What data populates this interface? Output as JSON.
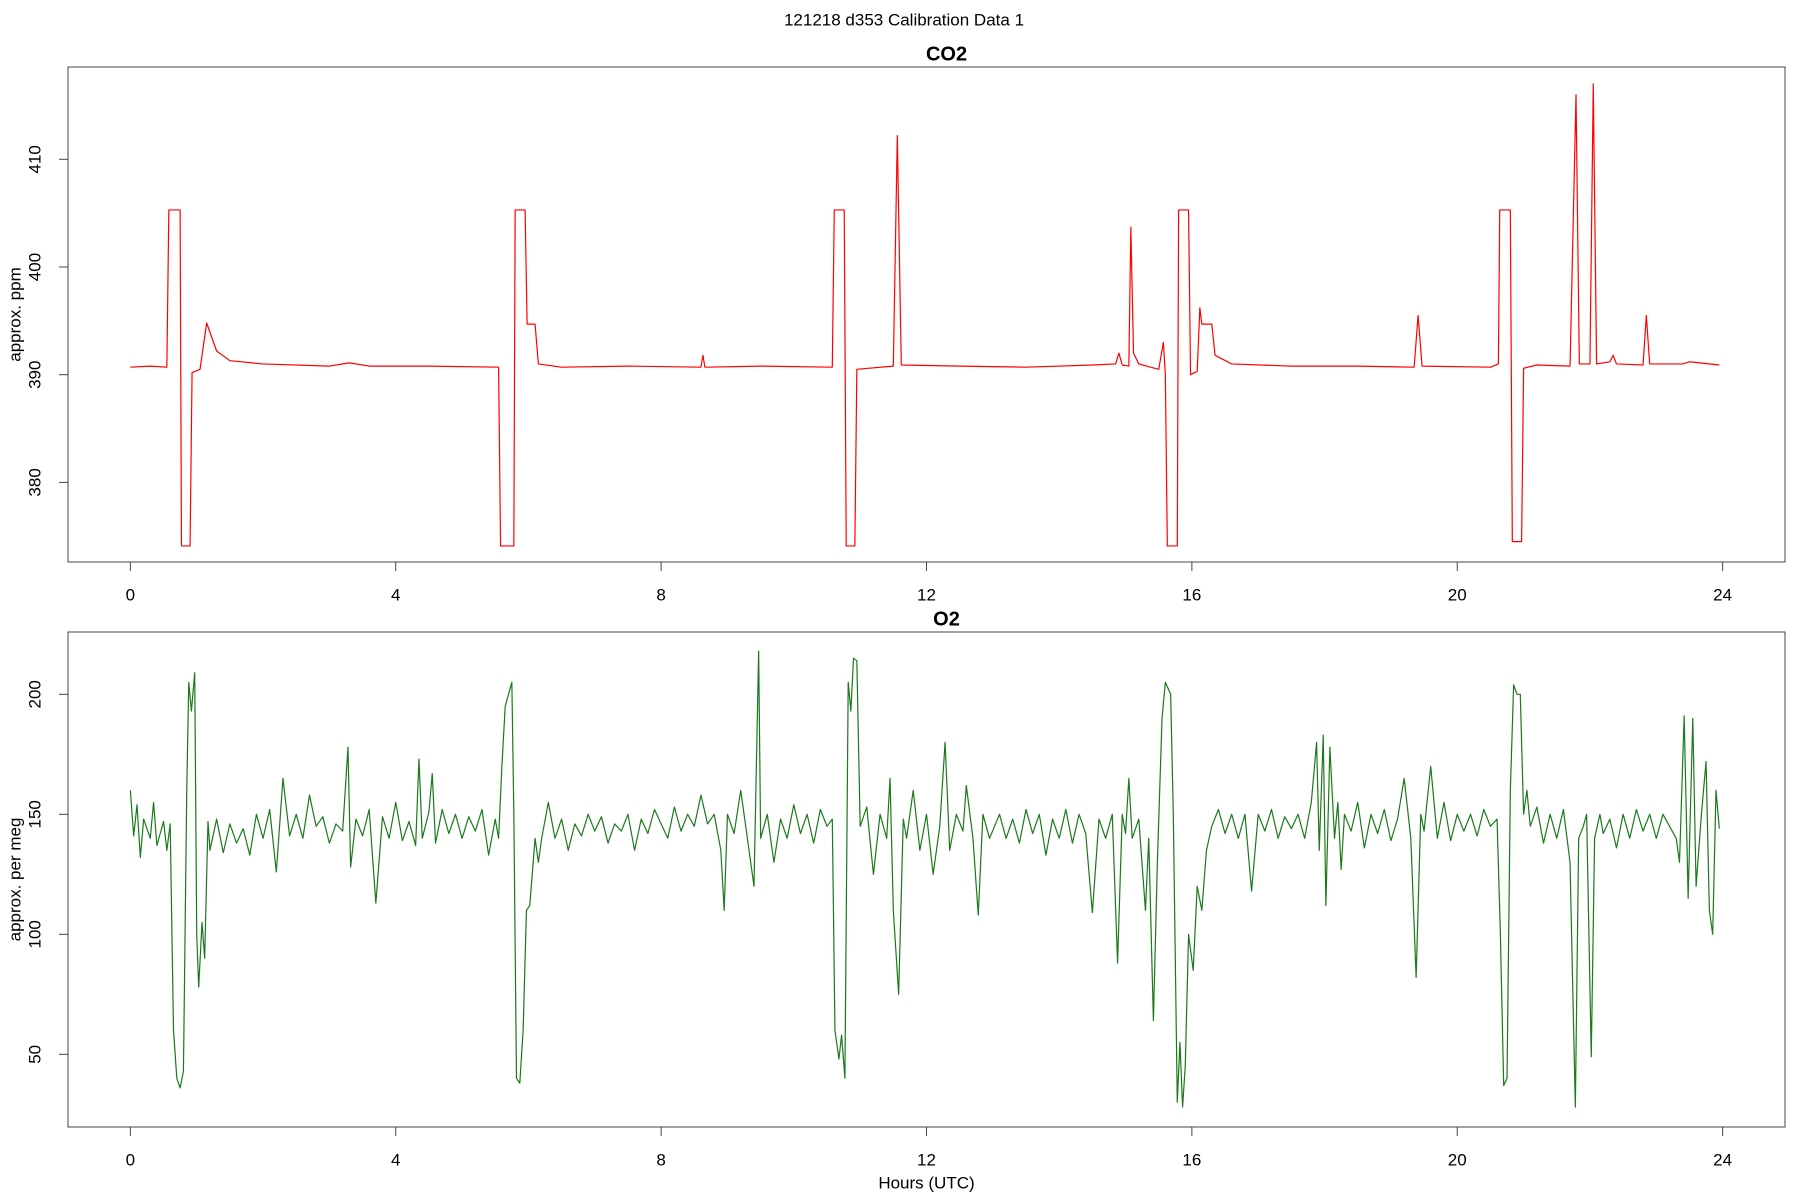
{
  "title": "121218   d353   Calibration Data 1",
  "chart_data": [
    {
      "type": "line",
      "title": "CO2",
      "y_label": "approx. ppm",
      "color": "#ff0000",
      "xlim": [
        -0.94,
        24.94
      ],
      "xticks": [
        0,
        4,
        8,
        12,
        16,
        20,
        24
      ],
      "ylim": [
        372.61,
        418.57
      ],
      "yticks": [
        380,
        390,
        400,
        410
      ],
      "x": [
        0,
        0.3,
        0.55,
        0.58,
        0.75,
        0.77,
        0.9,
        0.93,
        1.05,
        1.15,
        1.3,
        1.5,
        2,
        3,
        3.3,
        3.6,
        4.5,
        5.55,
        5.58,
        5.78,
        5.8,
        5.95,
        5.98,
        6.1,
        6.15,
        6.5,
        7.5,
        8.6,
        8.63,
        8.66,
        9.5,
        10.58,
        10.61,
        10.76,
        10.79,
        10.92,
        10.95,
        11.5,
        11.56,
        11.62,
        12.5,
        13.5,
        14.5,
        14.85,
        14.9,
        14.95,
        15.05,
        15.08,
        15.12,
        15.2,
        15.5,
        15.57,
        15.6,
        15.63,
        15.78,
        15.8,
        15.95,
        15.98,
        16.08,
        16.12,
        16.15,
        16.3,
        16.35,
        16.6,
        17.5,
        18.5,
        19.35,
        19.41,
        19.47,
        20.5,
        20.62,
        20.64,
        20.8,
        20.83,
        20.97,
        21.0,
        21.2,
        21.7,
        21.79,
        21.84,
        22.0,
        22.05,
        22.1,
        22.3,
        22.35,
        22.4,
        22.8,
        22.85,
        22.9,
        23.4,
        23.5,
        23.95
      ],
      "values": [
        390.7,
        390.8,
        390.7,
        405.3,
        405.3,
        374.1,
        374.1,
        390.2,
        390.5,
        394.8,
        392.2,
        391.3,
        391,
        390.8,
        391.1,
        390.8,
        390.8,
        390.7,
        374.1,
        374.1,
        405.3,
        405.3,
        394.7,
        394.7,
        391,
        390.7,
        390.8,
        390.7,
        391.8,
        390.7,
        390.8,
        390.7,
        405.3,
        405.3,
        374.1,
        374.1,
        390.5,
        390.8,
        412.2,
        390.9,
        390.8,
        390.7,
        390.9,
        391,
        392,
        390.9,
        390.8,
        403.7,
        392,
        391,
        390.5,
        393,
        390,
        374.1,
        374.1,
        405.3,
        405.3,
        390,
        390.3,
        396.2,
        394.7,
        394.7,
        391.8,
        391,
        390.8,
        390.8,
        390.7,
        395.5,
        390.8,
        390.7,
        391,
        405.3,
        405.3,
        374.5,
        374.5,
        390.6,
        390.9,
        390.8,
        416,
        391,
        391,
        417,
        391,
        391.2,
        391.8,
        391,
        390.9,
        395.5,
        391,
        391,
        391.2,
        390.9
      ]
    },
    {
      "type": "line",
      "title": "O2",
      "y_label": "approx. per meg",
      "x_label": "Hours (UTC)",
      "color": "#1a7a1a",
      "xlim": [
        -0.94,
        24.94
      ],
      "xticks": [
        0,
        4,
        8,
        12,
        16,
        20,
        24
      ],
      "ylim": [
        19.71,
        225.96
      ],
      "yticks": [
        50,
        100,
        150,
        200
      ],
      "x": [
        0,
        0.05,
        0.1,
        0.15,
        0.2,
        0.3,
        0.35,
        0.4,
        0.5,
        0.55,
        0.6,
        0.65,
        0.7,
        0.75,
        0.8,
        0.85,
        0.88,
        0.92,
        0.97,
        1.0,
        1.03,
        1.08,
        1.12,
        1.17,
        1.2,
        1.3,
        1.4,
        1.5,
        1.6,
        1.7,
        1.8,
        1.9,
        2,
        2.1,
        2.2,
        2.3,
        2.4,
        2.5,
        2.6,
        2.7,
        2.8,
        2.9,
        3,
        3.1,
        3.2,
        3.28,
        3.32,
        3.4,
        3.5,
        3.6,
        3.7,
        3.8,
        3.9,
        4,
        4.1,
        4.2,
        4.3,
        4.35,
        4.4,
        4.5,
        4.55,
        4.6,
        4.7,
        4.8,
        4.9,
        5,
        5.1,
        5.2,
        5.3,
        5.4,
        5.5,
        5.55,
        5.6,
        5.65,
        5.7,
        5.75,
        5.78,
        5.82,
        5.87,
        5.92,
        5.97,
        6.02,
        6.1,
        6.15,
        6.2,
        6.3,
        6.4,
        6.5,
        6.6,
        6.7,
        6.8,
        6.9,
        7,
        7.1,
        7.2,
        7.3,
        7.4,
        7.5,
        7.6,
        7.7,
        7.8,
        7.9,
        8,
        8.1,
        8.2,
        8.3,
        8.4,
        8.5,
        8.6,
        8.7,
        8.8,
        8.9,
        8.95,
        9,
        9.1,
        9.2,
        9.3,
        9.4,
        9.47,
        9.5,
        9.6,
        9.7,
        9.8,
        9.9,
        10,
        10.1,
        10.2,
        10.3,
        10.4,
        10.5,
        10.58,
        10.62,
        10.68,
        10.72,
        10.77,
        10.82,
        10.86,
        10.9,
        10.95,
        11,
        11.1,
        11.2,
        11.3,
        11.4,
        11.45,
        11.5,
        11.58,
        11.65,
        11.7,
        11.8,
        11.9,
        12,
        12.1,
        12.2,
        12.28,
        12.35,
        12.45,
        12.55,
        12.6,
        12.7,
        12.78,
        12.85,
        12.95,
        13.1,
        13.2,
        13.3,
        13.4,
        13.5,
        13.6,
        13.7,
        13.8,
        13.9,
        14,
        14.1,
        14.2,
        14.3,
        14.4,
        14.5,
        14.6,
        14.7,
        14.8,
        14.88,
        14.95,
        15,
        15.05,
        15.1,
        15.2,
        15.3,
        15.35,
        15.42,
        15.48,
        15.55,
        15.6,
        15.68,
        15.72,
        15.78,
        15.82,
        15.86,
        15.9,
        15.95,
        16.02,
        16.08,
        16.15,
        16.22,
        16.3,
        16.4,
        16.5,
        16.6,
        16.7,
        16.8,
        16.9,
        17,
        17.1,
        17.2,
        17.3,
        17.4,
        17.5,
        17.6,
        17.7,
        17.8,
        17.88,
        17.92,
        17.98,
        18.02,
        18.08,
        18.15,
        18.2,
        18.25,
        18.3,
        18.4,
        18.5,
        18.6,
        18.7,
        18.8,
        18.9,
        19,
        19.1,
        19.2,
        19.3,
        19.38,
        19.45,
        19.5,
        19.6,
        19.7,
        19.8,
        19.9,
        20,
        20.1,
        20.2,
        20.3,
        20.4,
        20.5,
        20.6,
        20.65,
        20.7,
        20.75,
        20.8,
        20.85,
        20.9,
        20.95,
        21,
        21.05,
        21.1,
        21.2,
        21.3,
        21.4,
        21.5,
        21.6,
        21.7,
        21.78,
        21.83,
        21.9,
        21.95,
        22.02,
        22.07,
        22.15,
        22.2,
        22.3,
        22.4,
        22.5,
        22.6,
        22.7,
        22.8,
        22.9,
        23,
        23.1,
        23.2,
        23.3,
        23.35,
        23.42,
        23.48,
        23.55,
        23.6,
        23.68,
        23.75,
        23.8,
        23.85,
        23.9,
        23.95
      ],
      "values": [
        160,
        141,
        154,
        132,
        148,
        140,
        155,
        137,
        147,
        135,
        146,
        60,
        40,
        36,
        43,
        160,
        205,
        193,
        209,
        100,
        78,
        105,
        90,
        147,
        135,
        148,
        134,
        146,
        138,
        144,
        133,
        150,
        140,
        152,
        126,
        165,
        141,
        150,
        140,
        158,
        145,
        149,
        138,
        146,
        143,
        178,
        128,
        148,
        141,
        152,
        113,
        149,
        140,
        155,
        139,
        147,
        137,
        173,
        140,
        151,
        167,
        138,
        152,
        142,
        150,
        140,
        149,
        143,
        152,
        133,
        148,
        140,
        170,
        195,
        200,
        205,
        150,
        40,
        38,
        60,
        110,
        112,
        140,
        130,
        140,
        155,
        140,
        148,
        135,
        146,
        141,
        150,
        143,
        149,
        138,
        146,
        143,
        150,
        135,
        148,
        142,
        152,
        146,
        140,
        153,
        143,
        150,
        145,
        158,
        146,
        150,
        135,
        110,
        150,
        142,
        160,
        140,
        120,
        218,
        140,
        150,
        130,
        148,
        140,
        154,
        142,
        150,
        138,
        152,
        145,
        148,
        60,
        48,
        58,
        40,
        205,
        193,
        215,
        214,
        145,
        153,
        125,
        150,
        140,
        165,
        110,
        75,
        148,
        140,
        160,
        135,
        150,
        125,
        145,
        180,
        135,
        150,
        143,
        162,
        140,
        108,
        150,
        140,
        150,
        140,
        148,
        138,
        152,
        142,
        150,
        133,
        148,
        140,
        152,
        138,
        150,
        142,
        109,
        148,
        140,
        150,
        88,
        150,
        142,
        165,
        140,
        148,
        110,
        140,
        64,
        130,
        190,
        205,
        200,
        150,
        30,
        55,
        28,
        45,
        100,
        85,
        120,
        110,
        135,
        145,
        152,
        142,
        150,
        140,
        150,
        118,
        150,
        143,
        152,
        140,
        149,
        144,
        150,
        140,
        155,
        180,
        135,
        183,
        112,
        178,
        140,
        155,
        127,
        150,
        143,
        155,
        136,
        150,
        142,
        152,
        139,
        148,
        165,
        140,
        82,
        150,
        143,
        170,
        140,
        155,
        139,
        150,
        143,
        150,
        141,
        152,
        145,
        148,
        100,
        37,
        40,
        160,
        204,
        200,
        200,
        150,
        160,
        145,
        153,
        138,
        150,
        140,
        152,
        130,
        28,
        140,
        145,
        150,
        49,
        140,
        150,
        142,
        148,
        136,
        150,
        140,
        152,
        143,
        150,
        140,
        150,
        145,
        140,
        130,
        191,
        115,
        190,
        120,
        150,
        172,
        110,
        100,
        160,
        144
      ]
    }
  ]
}
